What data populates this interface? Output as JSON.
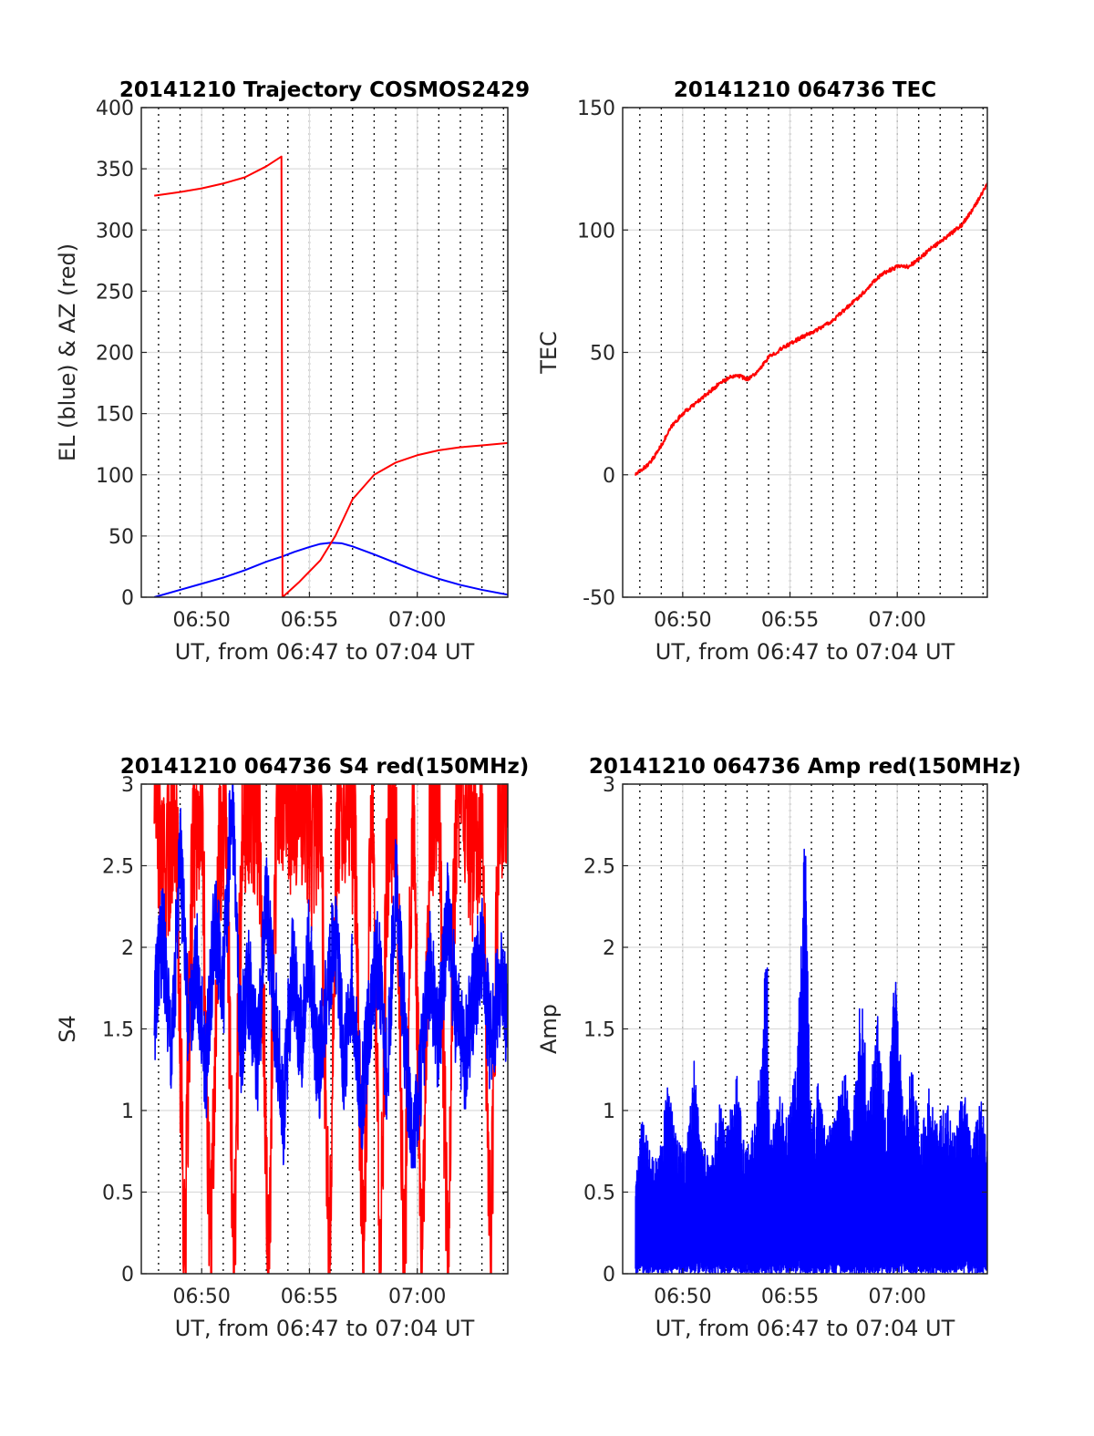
{
  "colors": {
    "red": "#ff0000",
    "blue": "#0000ff",
    "axis": "#262626",
    "grid": "#dcdcdc",
    "vline": "#000000"
  },
  "panels": [
    {
      "title": "20141210 Trajectory COSMOS2429",
      "xlabel": "UT, from 06:47 to 07:04 UT",
      "ylabel": "EL (blue) & AZ (red)",
      "xticks": [
        "06:50",
        "06:55",
        "07:00"
      ],
      "yticks": [
        "0",
        "50",
        "100",
        "150",
        "200",
        "250",
        "300",
        "350",
        "400"
      ]
    },
    {
      "title": "20141210 064736 TEC",
      "xlabel": "UT, from 06:47 to 07:04 UT",
      "ylabel": "TEC",
      "xticks": [
        "06:50",
        "06:55",
        "07:00"
      ],
      "yticks": [
        "-50",
        "0",
        "50",
        "100",
        "150"
      ]
    },
    {
      "title": "20141210 064736 S4 red(150MHz)",
      "xlabel": "UT, from 06:47 to 07:04 UT",
      "ylabel": "S4",
      "xticks": [
        "06:50",
        "06:55",
        "07:00"
      ],
      "yticks": [
        "0",
        "0.5",
        "1",
        "1.5",
        "2",
        "2.5",
        "3"
      ]
    },
    {
      "title": "20141210 064736 Amp red(150MHz)",
      "xlabel": "UT, from 06:47 to 07:04 UT",
      "ylabel": "Amp",
      "xticks": [
        "06:50",
        "06:55",
        "07:00"
      ],
      "yticks": [
        "0",
        "0.5",
        "1",
        "1.5",
        "2",
        "2.5",
        "3"
      ]
    }
  ],
  "chart_data": [
    {
      "type": "line",
      "title": "20141210 Trajectory COSMOS2429",
      "xlabel": "UT, from 06:47 to 07:04 UT",
      "ylabel": "EL (blue) & AZ (red)",
      "x_unit": "minutes after 06:47",
      "xlim": [
        0.2,
        17.2
      ],
      "ylim": [
        0,
        400
      ],
      "grid": true,
      "x_ticks": [
        {
          "label": "06:50",
          "x": 3
        },
        {
          "label": "06:55",
          "x": 8
        },
        {
          "label": "07:00",
          "x": 13
        }
      ],
      "series": [
        {
          "color": "#0000ff",
          "x": [
            0.8,
            2,
            3,
            4,
            5,
            6,
            6.7,
            7.3,
            8,
            8.5,
            9,
            9.5,
            10,
            11,
            12,
            13,
            14,
            15,
            16,
            17.2
          ],
          "y": [
            0,
            6,
            11,
            16,
            22,
            29,
            33,
            37,
            41,
            43.5,
            44.5,
            44,
            41.5,
            35,
            28,
            21,
            15,
            10,
            6,
            2
          ]
        },
        {
          "color": "#ff0000",
          "x": [
            0.8,
            2,
            3,
            4,
            5,
            6,
            6.7,
            6.75,
            7.5,
            8.5,
            9.2,
            10,
            11,
            12,
            13,
            14,
            15,
            16,
            17.2
          ],
          "y": [
            328,
            331,
            334,
            338,
            343,
            352,
            360,
            0,
            12,
            30,
            50,
            80,
            100,
            110,
            116,
            120,
            122.5,
            124,
            126
          ]
        }
      ]
    },
    {
      "type": "line",
      "title": "20141210 064736 TEC",
      "xlabel": "UT, from 06:47 to 07:04 UT",
      "ylabel": "TEC",
      "x_unit": "minutes after 06:47",
      "xlim": [
        0.2,
        17.2
      ],
      "ylim": [
        -50,
        150
      ],
      "grid": true,
      "x_ticks": [
        {
          "label": "06:50",
          "x": 3
        },
        {
          "label": "06:55",
          "x": 8
        },
        {
          "label": "07:00",
          "x": 13
        }
      ],
      "series": [
        {
          "color": "#ff0000",
          "x": [
            0.8,
            1.5,
            2,
            2.5,
            3,
            4,
            4.8,
            5.5,
            6,
            6.5,
            7,
            7.7,
            8.5,
            9,
            10,
            11,
            11.5,
            12,
            12.5,
            13,
            13.5,
            14,
            14.5,
            15,
            16,
            16.5,
            17.2
          ],
          "y": [
            0,
            5,
            12,
            20,
            25,
            32,
            38,
            41,
            39,
            42,
            48,
            52,
            56,
            58,
            63,
            71,
            75,
            80,
            83,
            85,
            85,
            88,
            92,
            95,
            102,
            108,
            119
          ]
        }
      ]
    },
    {
      "type": "line",
      "title": "20141210 064736 S4 red(150MHz)",
      "xlabel": "UT, from 06:47 to 07:04 UT",
      "ylabel": "S4",
      "x_unit": "minutes after 06:47",
      "xlim": [
        0.2,
        17.2
      ],
      "ylim": [
        0,
        3
      ],
      "grid": true,
      "x_ticks": [
        {
          "label": "06:50",
          "x": 3
        },
        {
          "label": "06:55",
          "x": 8
        },
        {
          "label": "07:00",
          "x": 13
        }
      ],
      "series": [
        {
          "color": "#ff0000",
          "x": [
            0.8,
            1.3,
            1.8,
            2.2,
            2.6,
            3.0,
            3.4,
            3.8,
            4.1,
            4.5,
            4.9,
            5.3,
            5.7,
            6.1,
            6.5,
            6.9,
            7.3,
            7.7,
            8.1,
            8.5,
            8.9,
            9.3,
            9.7,
            10.1,
            10.5,
            10.9,
            11.3,
            11.6,
            12.0,
            12.4,
            12.8,
            13.2,
            13.6,
            14.0,
            14.4,
            14.8,
            15.2,
            15.6,
            16.0,
            16.4,
            16.8,
            17.2
          ],
          "y": [
            3.0,
            2.4,
            3.0,
            0.0,
            2.7,
            3.0,
            0.0,
            2.5,
            3.0,
            0.0,
            2.9,
            3.0,
            2.7,
            0.0,
            3.0,
            3.0,
            2.8,
            3.0,
            2.6,
            3.0,
            0.0,
            2.9,
            3.0,
            2.7,
            0.0,
            3.0,
            0.0,
            2.6,
            3.0,
            0.0,
            3.0,
            0.0,
            2.8,
            3.0,
            0.0,
            2.9,
            3.0,
            2.5,
            3.0,
            0.0,
            3.0,
            3.0
          ]
        },
        {
          "color": "#0000ff",
          "x": [
            0.8,
            1.2,
            1.6,
            2.0,
            2.4,
            2.8,
            3.2,
            3.6,
            4.0,
            4.4,
            4.8,
            5.2,
            5.6,
            6.0,
            6.4,
            6.8,
            7.2,
            7.6,
            8.0,
            8.4,
            8.8,
            9.2,
            9.6,
            10.0,
            10.4,
            10.8,
            11.2,
            11.6,
            12.0,
            12.4,
            12.8,
            13.2,
            13.6,
            14.0,
            14.4,
            14.8,
            15.2,
            15.6,
            16.0,
            16.4,
            16.8,
            17.2
          ],
          "y": [
            1.6,
            2.1,
            1.3,
            2.6,
            1.5,
            1.9,
            1.2,
            2.2,
            1.7,
            3.0,
            1.4,
            1.8,
            1.3,
            2.3,
            1.6,
            1.0,
            1.9,
            1.4,
            2.0,
            1.2,
            1.7,
            2.1,
            1.3,
            1.8,
            1.0,
            1.6,
            2.0,
            1.2,
            2.4,
            1.5,
            0.7,
            1.3,
            1.9,
            1.4,
            2.2,
            1.6,
            1.3,
            1.7,
            2.0,
            1.4,
            1.8,
            1.6
          ]
        }
      ]
    },
    {
      "type": "line",
      "title": "20141210 064736 Amp red(150MHz)",
      "xlabel": "UT, from 06:47 to 07:04 UT",
      "ylabel": "Amp",
      "x_unit": "minutes after 06:47",
      "xlim": [
        0.2,
        17.2
      ],
      "ylim": [
        0,
        3
      ],
      "grid": true,
      "x_ticks": [
        {
          "label": "06:50",
          "x": 3
        },
        {
          "label": "06:55",
          "x": 8
        },
        {
          "label": "07:00",
          "x": 13
        }
      ],
      "series": [
        {
          "color": "#0000ff",
          "x": [
            0.8,
            1.1,
            1.5,
            1.9,
            2.3,
            2.7,
            3.1,
            3.5,
            3.9,
            4.3,
            4.7,
            5.1,
            5.5,
            5.9,
            6.3,
            6.7,
            6.9,
            7.1,
            7.5,
            7.9,
            8.3,
            8.7,
            9.0,
            9.3,
            9.7,
            10.1,
            10.5,
            10.9,
            11.3,
            11.7,
            12.1,
            12.5,
            12.9,
            13.3,
            13.7,
            14.1,
            14.5,
            14.9,
            15.3,
            15.7,
            16.1,
            16.5,
            16.9,
            17.2
          ],
          "y": [
            0.6,
            0.95,
            0.8,
            0.7,
            1.2,
            0.85,
            0.75,
            1.35,
            0.8,
            0.7,
            1.1,
            0.9,
            1.25,
            0.75,
            0.9,
            1.4,
            2.25,
            0.85,
            1.1,
            0.95,
            1.3,
            2.8,
            0.9,
            1.2,
            0.85,
            1.0,
            1.35,
            0.9,
            1.75,
            1.1,
            1.6,
            0.9,
            1.9,
            1.0,
            1.3,
            0.85,
            1.15,
            0.9,
            1.1,
            0.85,
            1.2,
            0.8,
            1.1,
            0.75
          ]
        }
      ]
    }
  ]
}
